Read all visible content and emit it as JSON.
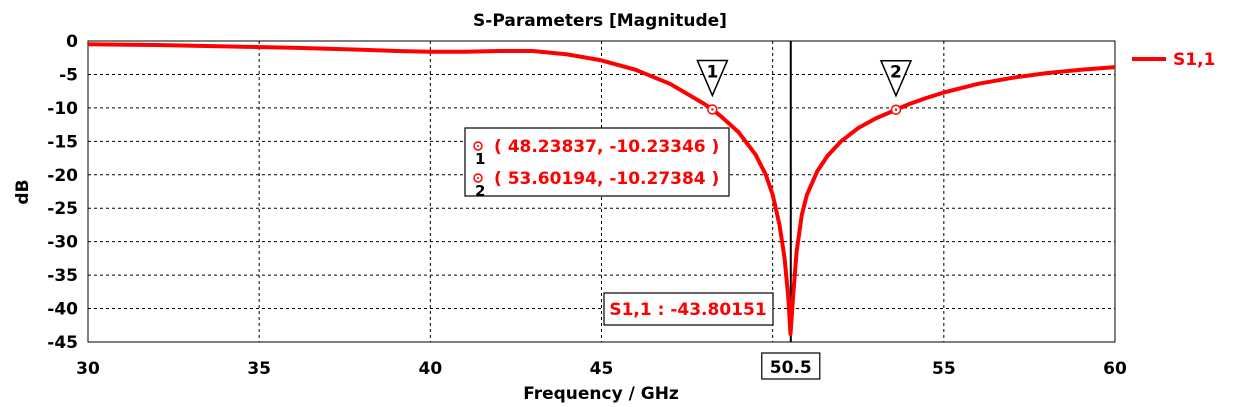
{
  "chart_data": {
    "type": "line",
    "title": "S-Parameters [Magnitude]",
    "xlabel": "Frequency / GHz",
    "ylabel": "dB",
    "xlim": [
      30,
      60
    ],
    "ylim": [
      -45,
      0
    ],
    "x_ticks": [
      "30",
      "35",
      "40",
      "45",
      "50",
      "55",
      "60"
    ],
    "y_ticks": [
      "0",
      "-5",
      "-10",
      "-15",
      "-20",
      "-25",
      "-30",
      "-35",
      "-40",
      "-45"
    ],
    "grid": true,
    "legend_position": "right",
    "series": [
      {
        "name": "S1,1",
        "color": "#ff0000",
        "points": [
          [
            30,
            -0.5
          ],
          [
            32,
            -0.6
          ],
          [
            34,
            -0.8
          ],
          [
            36,
            -1.0
          ],
          [
            38,
            -1.3
          ],
          [
            39,
            -1.5
          ],
          [
            40,
            -1.6
          ],
          [
            41,
            -1.6
          ],
          [
            42,
            -1.5
          ],
          [
            43,
            -1.5
          ],
          [
            44,
            -2.0
          ],
          [
            45,
            -2.9
          ],
          [
            46,
            -4.3
          ],
          [
            47,
            -6.4
          ],
          [
            47.5,
            -7.9
          ],
          [
            48,
            -9.4
          ],
          [
            48.23837,
            -10.23346
          ],
          [
            48.5,
            -11.3
          ],
          [
            49,
            -13.6
          ],
          [
            49.5,
            -17.0
          ],
          [
            49.8,
            -20.0
          ],
          [
            50,
            -23.0
          ],
          [
            50.2,
            -27.5
          ],
          [
            50.35,
            -32.5
          ],
          [
            50.45,
            -38.0
          ],
          [
            50.52,
            -43.80151
          ],
          [
            50.6,
            -38.0
          ],
          [
            50.7,
            -31.5
          ],
          [
            50.85,
            -26.0
          ],
          [
            51,
            -23.0
          ],
          [
            51.3,
            -19.5
          ],
          [
            51.6,
            -17.2
          ],
          [
            52,
            -15.0
          ],
          [
            52.5,
            -13.0
          ],
          [
            53,
            -11.6
          ],
          [
            53.60194,
            -10.27384
          ],
          [
            54,
            -9.4
          ],
          [
            54.5,
            -8.5
          ],
          [
            55,
            -7.7
          ],
          [
            56,
            -6.4
          ],
          [
            57,
            -5.5
          ],
          [
            58,
            -4.8
          ],
          [
            59,
            -4.3
          ],
          [
            60,
            -3.9
          ]
        ]
      }
    ],
    "markers": [
      {
        "id": "1",
        "x": 48.23837,
        "y": -10.23346,
        "label": "( 48.23837, -10.23346 )"
      },
      {
        "id": "2",
        "x": 53.60194,
        "y": -10.27384,
        "label": "( 53.60194, -10.27384 )"
      }
    ],
    "vertical_marker": {
      "x": 50.5,
      "label": "50.5"
    },
    "min_annotation": {
      "label": "S1,1 : -43.80151",
      "y": -43.80151
    }
  }
}
